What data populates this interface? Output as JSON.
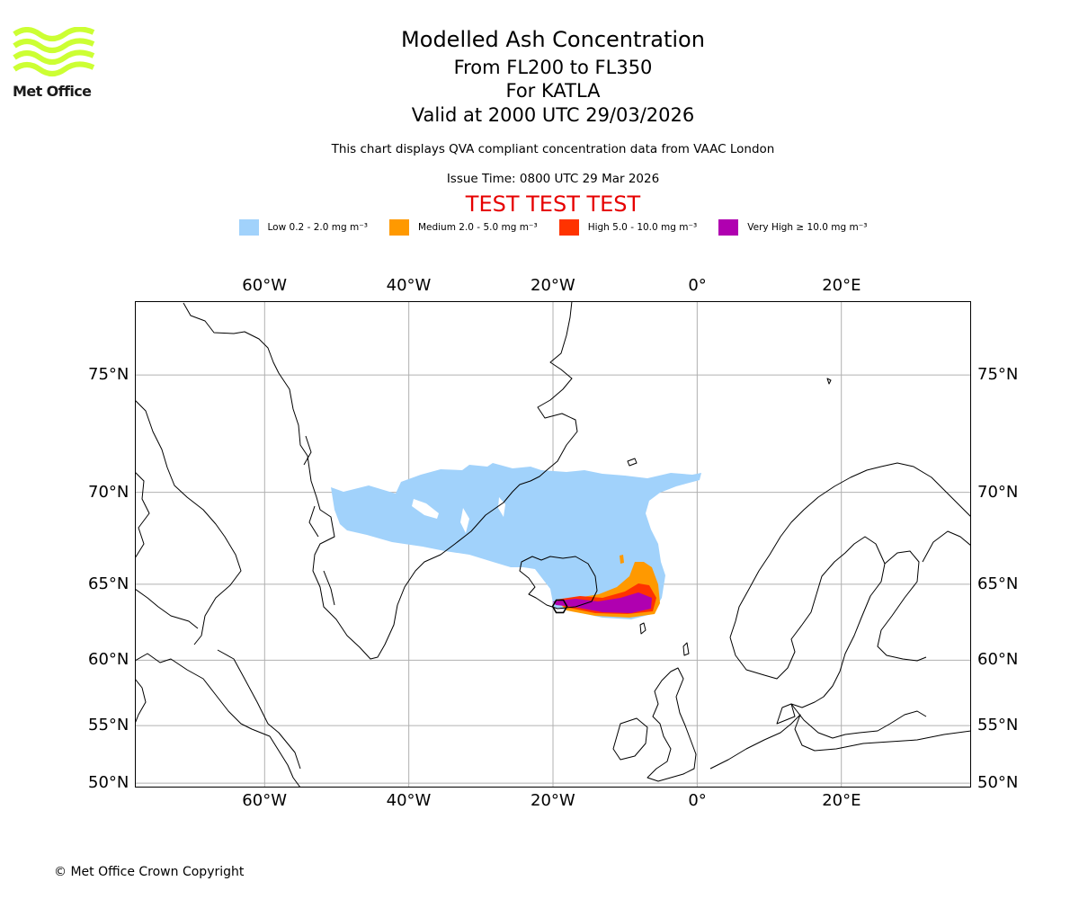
{
  "logo": {
    "text": "Met Office",
    "color": "#ccff33"
  },
  "title": "Modelled Ash Concentration",
  "subtitle_levels": "From FL200 to FL350",
  "subtitle_volcano": "For KATLA",
  "subtitle_valid": "Valid at 2000 UTC 29/03/2026",
  "description": "This chart displays QVA compliant concentration data from VAAC London",
  "issue_time": "Issue Time: 0800 UTC 29 Mar 2026",
  "test_banner": "TEST TEST TEST",
  "legend": [
    {
      "label": "Low 0.2 - 2.0 mg m⁻³",
      "color": "#a1d2fb"
    },
    {
      "label": "Medium 2.0 - 5.0 mg m⁻³",
      "color": "#ff9900"
    },
    {
      "label": "High 5.0 - 10.0 mg m⁻³",
      "color": "#ff3300"
    },
    {
      "label": "Very High  ≥  10.0 mg m⁻³",
      "color": "#b000b0"
    }
  ],
  "map": {
    "lon_range": [
      -78,
      38
    ],
    "lat_range": [
      49.6,
      77.5
    ],
    "lon_ticks": [
      {
        "value": -60,
        "label": "60°W"
      },
      {
        "value": -40,
        "label": "40°W"
      },
      {
        "value": -20,
        "label": "20°W"
      },
      {
        "value": 0,
        "label": "0°"
      },
      {
        "value": 20,
        "label": "20°E"
      }
    ],
    "lat_ticks": [
      {
        "value": 75,
        "label": "75°N"
      },
      {
        "value": 70,
        "label": "70°N"
      },
      {
        "value": 65,
        "label": "65°N"
      },
      {
        "value": 60,
        "label": "60°N"
      },
      {
        "value": 55,
        "label": "55°N"
      },
      {
        "value": 50,
        "label": "50°N"
      }
    ],
    "volcano": {
      "name": "KATLA",
      "lon": -19.05,
      "lat": 63.63
    }
  },
  "copyright": "© Met Office Crown Copyright"
}
